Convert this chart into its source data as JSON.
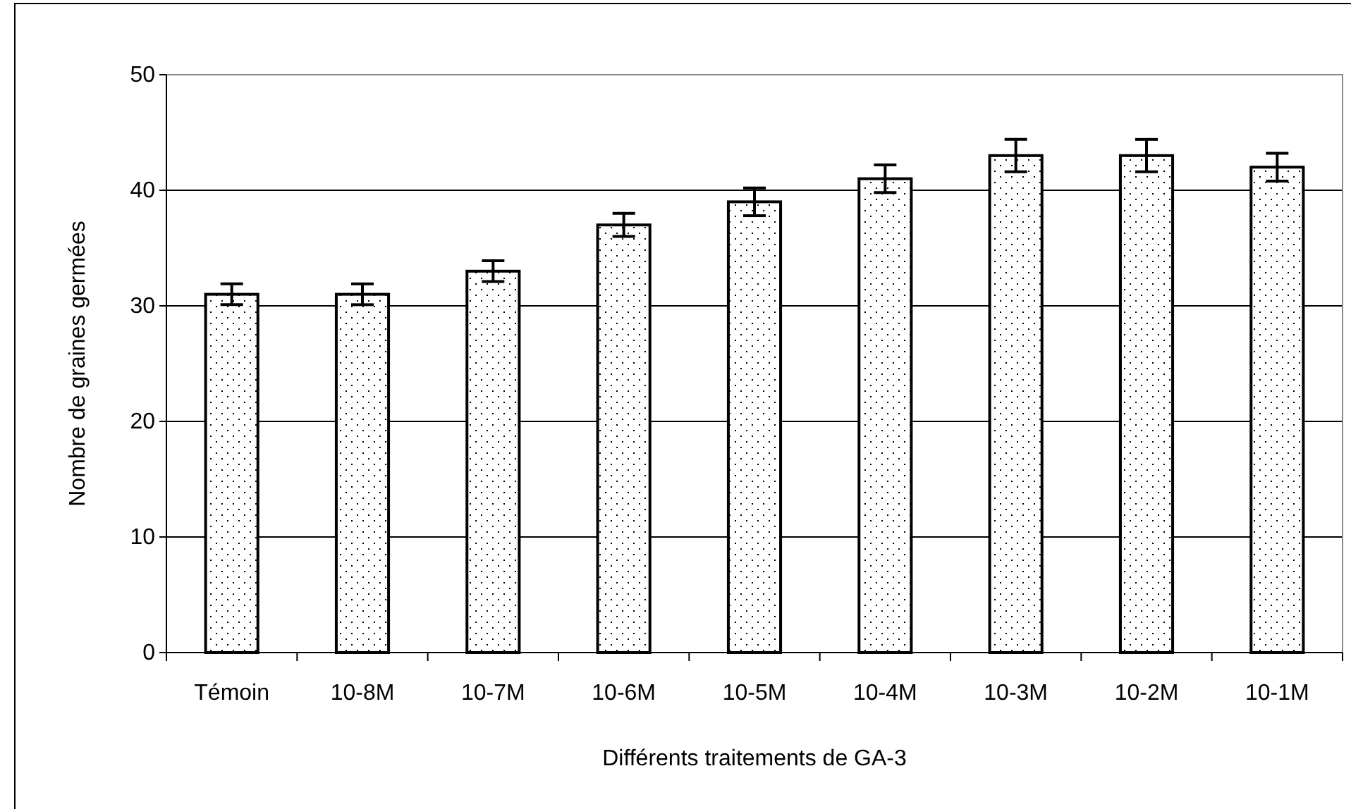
{
  "chart_data": {
    "type": "bar",
    "xlabel": "Différents traitements de GA-3",
    "ylabel": "Nombre de graines germées",
    "categories": [
      "Témoin",
      "10-8M",
      "10-7M",
      "10-6M",
      "10-5M",
      "10-4M",
      "10-3M",
      "10-2M",
      "10-1M"
    ],
    "values": [
      31,
      31,
      33,
      37,
      39,
      41,
      43,
      43,
      42
    ],
    "errors": [
      0.9,
      0.9,
      0.9,
      1,
      1.2,
      1.2,
      1.4,
      1.4,
      1.2
    ],
    "color": "#000000",
    "ylim": [
      0,
      50
    ],
    "yticks": [
      0,
      10,
      20,
      30,
      40,
      50
    ],
    "grid": "y"
  }
}
